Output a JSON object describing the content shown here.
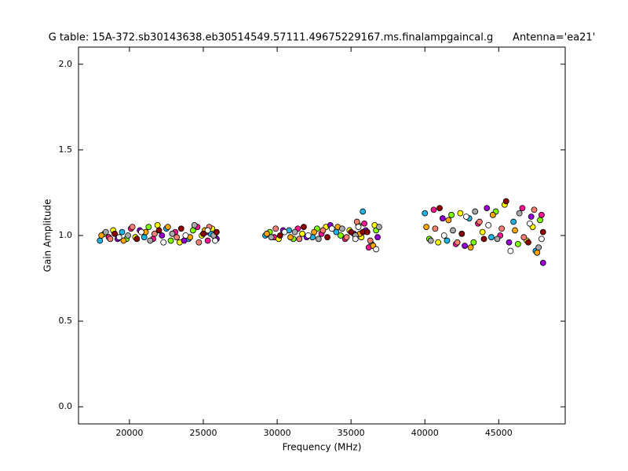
{
  "chart_data": {
    "type": "scatter",
    "title": "G table: 15A-372.sb30143638.eb30514549.57111.49675229167.ms.finalampgaincal.g      Antenna='ea21'",
    "x_label": "Frequency (MHz)",
    "y_label": "Gain Amplitude",
    "xlim": [
      16550,
      49500
    ],
    "ylim": [
      -0.1,
      2.1
    ],
    "xticks": [
      20000,
      25000,
      30000,
      35000,
      40000,
      45000
    ],
    "yticks": [
      {
        "value": 0,
        "label": "0.0"
      },
      0.5,
      {
        "value": 1,
        "label": "1.0"
      },
      1.5,
      {
        "value": 2,
        "label": "2.0"
      }
    ],
    "series": [
      {
        "color": "#1fb4e6",
        "x": [
          18000,
          19500,
          21000,
          22500,
          24000,
          25500,
          29200,
          30800,
          32400,
          34000,
          35800,
          36400,
          40000,
          41500,
          43000,
          44500,
          46000,
          47500
        ],
        "values": [
          0.97,
          1.02,
          0.99,
          1.04,
          0.98,
          1.01,
          1.0,
          1.03,
          0.99,
          1.02,
          1.14,
          0.95,
          1.13,
          0.97,
          1.1,
          0.99,
          1.08,
          0.91
        ]
      },
      {
        "color": "#7fff00",
        "x": [
          18300,
          19800,
          21300,
          22800,
          24300,
          25800,
          29500,
          31100,
          32700,
          34300,
          35500,
          36700,
          40300,
          41800,
          43300,
          44800,
          46300,
          47800
        ],
        "values": [
          1.01,
          0.98,
          1.05,
          0.97,
          1.03,
          0.99,
          1.02,
          0.98,
          1.04,
          1.0,
          1.06,
          1.03,
          0.98,
          1.12,
          0.96,
          1.14,
          0.95,
          1.09
        ]
      },
      {
        "color": "#ff1493",
        "x": [
          18600,
          20100,
          21600,
          23100,
          24600,
          25300,
          29800,
          31400,
          33000,
          34600,
          35900,
          36200,
          40600,
          42100,
          43600,
          45100,
          46600,
          47900
        ],
        "values": [
          0.99,
          1.04,
          0.98,
          1.02,
          1.05,
          0.97,
          0.99,
          1.04,
          1.01,
          0.98,
          1.07,
          0.93,
          1.15,
          0.95,
          1.07,
          1.0,
          1.16,
          1.12
        ]
      },
      {
        "color": "#ffff00",
        "x": [
          18900,
          20400,
          21900,
          23400,
          24900,
          25600,
          30100,
          31700,
          33300,
          34900,
          35700,
          36600,
          40900,
          42400,
          43900,
          45400,
          46900,
          47300
        ],
        "values": [
          1.03,
          0.99,
          1.06,
          0.96,
          1.0,
          1.04,
          0.98,
          1.01,
          1.05,
          1.03,
          0.99,
          1.06,
          0.96,
          1.13,
          1.02,
          1.18,
          0.97,
          1.05
        ]
      },
      {
        "color": "#9400d3",
        "x": [
          19200,
          20700,
          22200,
          23700,
          25200,
          25900,
          30400,
          32000,
          33600,
          35200,
          36000,
          36800,
          41200,
          42700,
          44200,
          45700,
          47200,
          48000
        ],
        "values": [
          0.98,
          1.03,
          1.0,
          0.97,
          1.02,
          0.98,
          1.03,
          0.99,
          1.06,
          1.01,
          1.03,
          0.99,
          1.1,
          0.94,
          1.16,
          0.96,
          1.11,
          0.84
        ]
      },
      {
        "color": "#ffa500",
        "x": [
          18100,
          19600,
          21100,
          22600,
          24100,
          25100,
          29300,
          30900,
          32500,
          34100,
          35600,
          36500,
          40100,
          41600,
          43100,
          44600,
          46100,
          47600
        ],
        "values": [
          1.0,
          0.97,
          1.02,
          1.05,
          0.99,
          1.03,
          1.01,
          0.99,
          1.02,
          1.05,
          1.01,
          0.94,
          1.05,
          1.09,
          0.93,
          1.12,
          1.03,
          0.9
        ]
      },
      {
        "color": "#a9a9a9",
        "x": [
          18400,
          19900,
          21400,
          22900,
          24400,
          25700,
          29600,
          31200,
          32800,
          34400,
          35300,
          36900,
          40400,
          41900,
          43400,
          44900,
          46400,
          47700
        ],
        "values": [
          1.02,
          1.0,
          0.97,
          1.01,
          1.06,
          1.0,
          0.99,
          1.02,
          0.98,
          1.04,
          1.0,
          1.05,
          0.97,
          1.03,
          1.14,
          0.98,
          1.13,
          0.93
        ]
      },
      {
        "color": "#fa8072",
        "x": [
          18700,
          20200,
          21700,
          23200,
          24700,
          25400,
          29900,
          31500,
          33100,
          34700,
          35400,
          36300,
          40700,
          42200,
          43700,
          45200,
          46700,
          47400
        ],
        "values": [
          0.98,
          1.05,
          1.01,
          0.99,
          0.96,
          1.05,
          1.04,
          0.98,
          1.03,
          0.99,
          1.08,
          0.97,
          1.04,
          0.96,
          1.08,
          1.04,
          0.99,
          1.15
        ]
      },
      {
        "color": "#8b0000",
        "x": [
          19000,
          20500,
          22000,
          23500,
          25000,
          25900,
          30200,
          31800,
          33400,
          35000,
          35800,
          36100,
          41000,
          42500,
          44000,
          45500,
          47000,
          48000
        ],
        "values": [
          1.01,
          0.98,
          1.03,
          1.04,
          1.01,
          1.02,
          1.0,
          1.05,
          0.99,
          1.02,
          1.02,
          1.02,
          1.16,
          1.01,
          0.98,
          1.2,
          0.96,
          1.02
        ]
      },
      {
        "color": "#ffffff",
        "x": [
          19300,
          20800,
          22300,
          23800,
          25300,
          25800,
          30500,
          32100,
          33700,
          35300,
          35500,
          36700,
          41300,
          42800,
          44300,
          45800,
          47100,
          47900
        ],
        "values": [
          0.99,
          1.02,
          0.96,
          1.0,
          1.03,
          0.97,
          1.02,
          1.0,
          1.04,
          0.98,
          1.05,
          0.92,
          1.0,
          1.11,
          1.06,
          0.91,
          1.07,
          0.98
        ]
      }
    ]
  }
}
